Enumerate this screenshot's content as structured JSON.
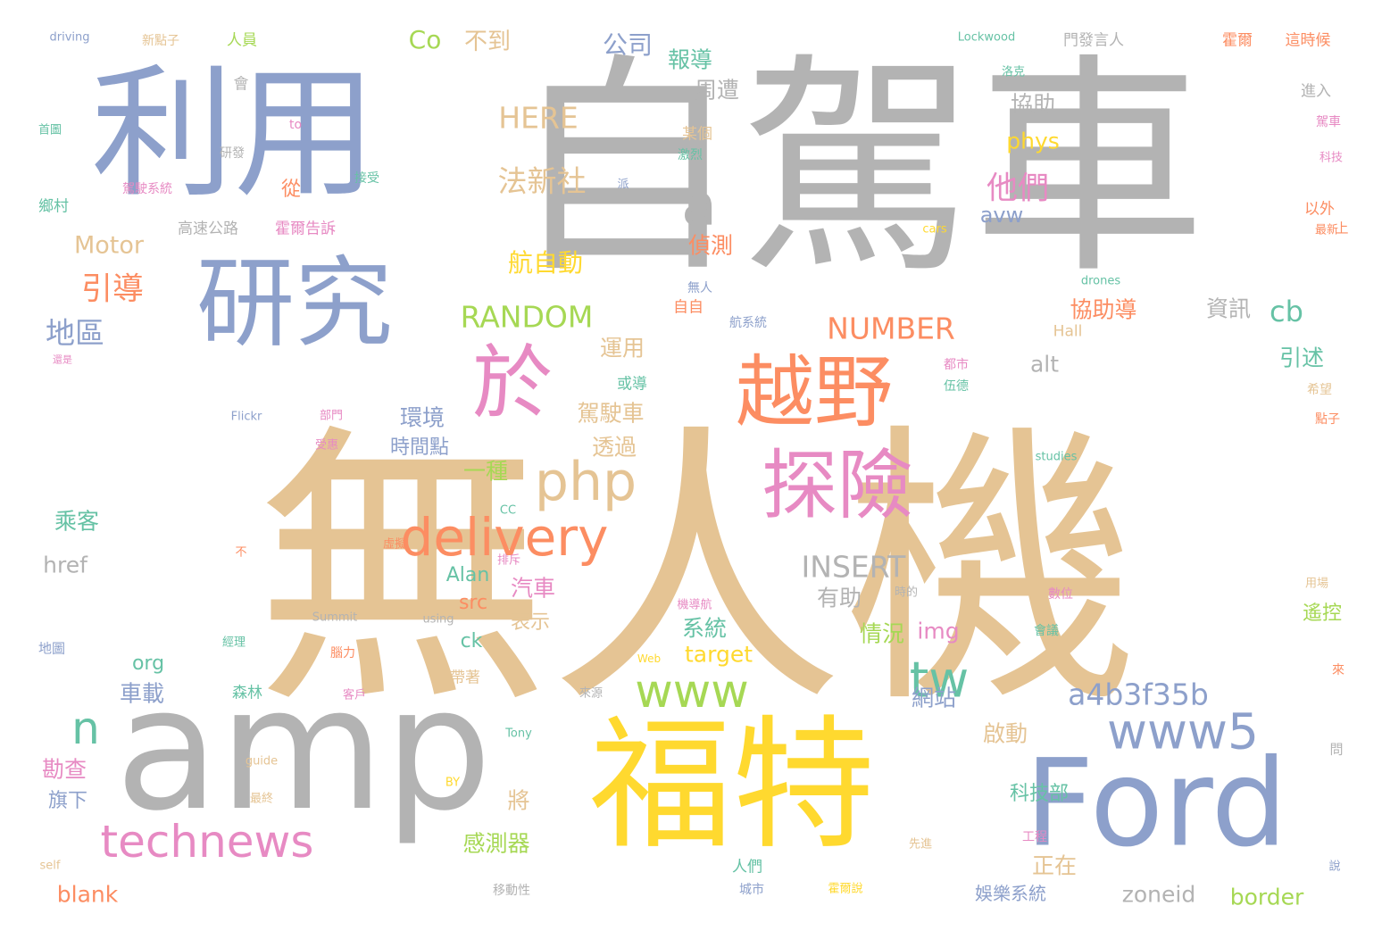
{
  "palette": {
    "tan": "#e5c494",
    "gray": "#b3b3b3",
    "blue": "#8da0cb",
    "orange": "#fc8d62",
    "pink": "#e78ac3",
    "green": "#66c2a5",
    "lime": "#a6d854",
    "yellow": "#ffd92f"
  },
  "words": [
    {
      "text": "無人機",
      "color": "tan"
    },
    {
      "text": "自駕車",
      "color": "gray"
    },
    {
      "text": "利用",
      "color": "blue"
    },
    {
      "text": "研究",
      "color": "blue"
    },
    {
      "text": "amp",
      "color": "gray"
    },
    {
      "text": "福特",
      "color": "yellow"
    },
    {
      "text": "Ford",
      "color": "blue"
    },
    {
      "text": "於",
      "color": "pink"
    },
    {
      "text": "越野",
      "color": "orange"
    },
    {
      "text": "探險",
      "color": "pink"
    },
    {
      "text": "a",
      "color": "gray"
    },
    {
      "text": "php",
      "color": "tan"
    },
    {
      "text": "delivery",
      "color": "orange"
    },
    {
      "text": "technews",
      "color": "pink"
    },
    {
      "text": "www",
      "color": "lime"
    },
    {
      "text": "www5",
      "color": "blue"
    },
    {
      "text": "tw",
      "color": "green"
    },
    {
      "text": "n",
      "color": "green"
    },
    {
      "text": "a4b3f35b",
      "color": "blue"
    },
    {
      "text": "RANDOM",
      "color": "lime"
    },
    {
      "text": "NUMBER",
      "color": "orange"
    },
    {
      "text": "INSERT",
      "color": "gray"
    },
    {
      "text": "法新社",
      "color": "tan"
    },
    {
      "text": "航自動",
      "color": "yellow"
    },
    {
      "text": "HERE",
      "color": "tan"
    },
    {
      "text": "Motor",
      "color": "tan"
    },
    {
      "text": "引導",
      "color": "orange"
    },
    {
      "text": "地區",
      "color": "blue"
    },
    {
      "text": "他們",
      "color": "pink"
    },
    {
      "text": "Co",
      "color": "lime"
    },
    {
      "text": "不到",
      "color": "tan"
    },
    {
      "text": "公司",
      "color": "blue"
    },
    {
      "text": "報導",
      "color": "green"
    },
    {
      "text": "周遭",
      "color": "gray"
    },
    {
      "text": "協助",
      "color": "gray"
    },
    {
      "text": "phys",
      "color": "yellow"
    },
    {
      "text": "avw",
      "color": "blue"
    },
    {
      "text": "偵測",
      "color": "orange"
    },
    {
      "text": "cb",
      "color": "green"
    },
    {
      "text": "資訊",
      "color": "gray"
    },
    {
      "text": "協助導",
      "color": "orange"
    },
    {
      "text": "alt",
      "color": "gray"
    },
    {
      "text": "引述",
      "color": "green"
    },
    {
      "text": "運用",
      "color": "tan"
    },
    {
      "text": "環境",
      "color": "blue"
    },
    {
      "text": "駕駛車",
      "color": "tan"
    },
    {
      "text": "透過",
      "color": "tan"
    },
    {
      "text": "一種",
      "color": "lime"
    },
    {
      "text": "時間點",
      "color": "blue"
    },
    {
      "text": "乘客",
      "color": "green"
    },
    {
      "text": "href",
      "color": "gray"
    },
    {
      "text": "Alan",
      "color": "green"
    },
    {
      "text": "汽車",
      "color": "pink"
    },
    {
      "text": "src",
      "color": "orange"
    },
    {
      "text": "有助",
      "color": "gray"
    },
    {
      "text": "情況",
      "color": "lime"
    },
    {
      "text": "img",
      "color": "pink"
    },
    {
      "text": "系統",
      "color": "green"
    },
    {
      "text": "target",
      "color": "yellow"
    },
    {
      "text": "表示",
      "color": "tan"
    },
    {
      "text": "ck",
      "color": "green"
    },
    {
      "text": "org",
      "color": "green"
    },
    {
      "text": "車載",
      "color": "blue"
    },
    {
      "text": "網站",
      "color": "blue"
    },
    {
      "text": "啟動",
      "color": "tan"
    },
    {
      "text": "勘查",
      "color": "pink"
    },
    {
      "text": "旗下",
      "color": "blue"
    },
    {
      "text": "將",
      "color": "tan"
    },
    {
      "text": "感測器",
      "color": "lime"
    },
    {
      "text": "blank",
      "color": "orange"
    },
    {
      "text": "正在",
      "color": "tan"
    },
    {
      "text": "科技部",
      "color": "green"
    },
    {
      "text": "zoneid",
      "color": "gray"
    },
    {
      "text": "border",
      "color": "lime"
    },
    {
      "text": "娛樂系統",
      "color": "blue"
    },
    {
      "text": "遙控",
      "color": "lime"
    },
    {
      "text": "從",
      "color": "orange"
    },
    {
      "text": "霍爾告訴",
      "color": "pink"
    },
    {
      "text": "高速公路",
      "color": "gray"
    },
    {
      "text": "鄉村",
      "color": "green"
    },
    {
      "text": "駕駛系統",
      "color": "pink"
    },
    {
      "text": "人員",
      "color": "lime"
    },
    {
      "text": "新點子",
      "color": "tan"
    },
    {
      "text": "driving",
      "color": "blue"
    },
    {
      "text": "首圖",
      "color": "green"
    },
    {
      "text": "to",
      "color": "pink"
    },
    {
      "text": "研發",
      "color": "gray"
    },
    {
      "text": "接受",
      "color": "green"
    },
    {
      "text": "會",
      "color": "gray"
    },
    {
      "text": "Lockwood",
      "color": "green"
    },
    {
      "text": "門發言人",
      "color": "gray"
    },
    {
      "text": "霍爾",
      "color": "orange"
    },
    {
      "text": "這時候",
      "color": "orange"
    },
    {
      "text": "進入",
      "color": "gray"
    },
    {
      "text": "駕車",
      "color": "pink"
    },
    {
      "text": "科技",
      "color": "pink"
    },
    {
      "text": "以外",
      "color": "orange"
    },
    {
      "text": "最新",
      "color": "orange"
    },
    {
      "text": "上",
      "color": "orange"
    },
    {
      "text": "cars",
      "color": "yellow"
    },
    {
      "text": "drones",
      "color": "green"
    },
    {
      "text": "Hall",
      "color": "tan"
    },
    {
      "text": "都市",
      "color": "pink"
    },
    {
      "text": "伍德",
      "color": "green"
    },
    {
      "text": "studies",
      "color": "green"
    },
    {
      "text": "希望",
      "color": "tan"
    },
    {
      "text": "點子",
      "color": "orange"
    },
    {
      "text": "無人",
      "color": "blue"
    },
    {
      "text": "自自",
      "color": "orange"
    },
    {
      "text": "航系統",
      "color": "blue"
    },
    {
      "text": "或導",
      "color": "green"
    },
    {
      "text": "某個",
      "color": "tan"
    },
    {
      "text": "激烈",
      "color": "green"
    },
    {
      "text": "派",
      "color": "blue"
    },
    {
      "text": "洛克",
      "color": "green"
    },
    {
      "text": "Flickr",
      "color": "blue"
    },
    {
      "text": "部門",
      "color": "pink"
    },
    {
      "text": "受惠",
      "color": "pink"
    },
    {
      "text": "CC",
      "color": "green"
    },
    {
      "text": "不",
      "color": "orange"
    },
    {
      "text": "虛擬",
      "color": "orange"
    },
    {
      "text": "排斥",
      "color": "pink"
    },
    {
      "text": "Summit",
      "color": "gray"
    },
    {
      "text": "using",
      "color": "gray"
    },
    {
      "text": "腦力",
      "color": "orange"
    },
    {
      "text": "經理",
      "color": "green"
    },
    {
      "text": "地圖",
      "color": "blue"
    },
    {
      "text": "森林",
      "color": "green"
    },
    {
      "text": "客戶",
      "color": "pink"
    },
    {
      "text": "帶著",
      "color": "tan"
    },
    {
      "text": "Web",
      "color": "yellow"
    },
    {
      "text": "來源",
      "color": "gray"
    },
    {
      "text": "機導航",
      "color": "pink"
    },
    {
      "text": "時的",
      "color": "gray"
    },
    {
      "text": "數位",
      "color": "pink"
    },
    {
      "text": "會議",
      "color": "green"
    },
    {
      "text": "用場",
      "color": "tan"
    },
    {
      "text": "來",
      "color": "orange"
    },
    {
      "text": "問",
      "color": "gray"
    },
    {
      "text": "Tony",
      "color": "green"
    },
    {
      "text": "guide",
      "color": "tan"
    },
    {
      "text": "BY",
      "color": "yellow"
    },
    {
      "text": "最終",
      "color": "tan"
    },
    {
      "text": "self",
      "color": "tan"
    },
    {
      "text": "移動性",
      "color": "gray"
    },
    {
      "text": "人們",
      "color": "green"
    },
    {
      "text": "城市",
      "color": "blue"
    },
    {
      "text": "霍爾說",
      "color": "yellow"
    },
    {
      "text": "先進",
      "color": "tan"
    },
    {
      "text": "工程",
      "color": "pink"
    },
    {
      "text": "說",
      "color": "blue"
    },
    {
      "text": "還是",
      "color": "pink"
    }
  ]
}
